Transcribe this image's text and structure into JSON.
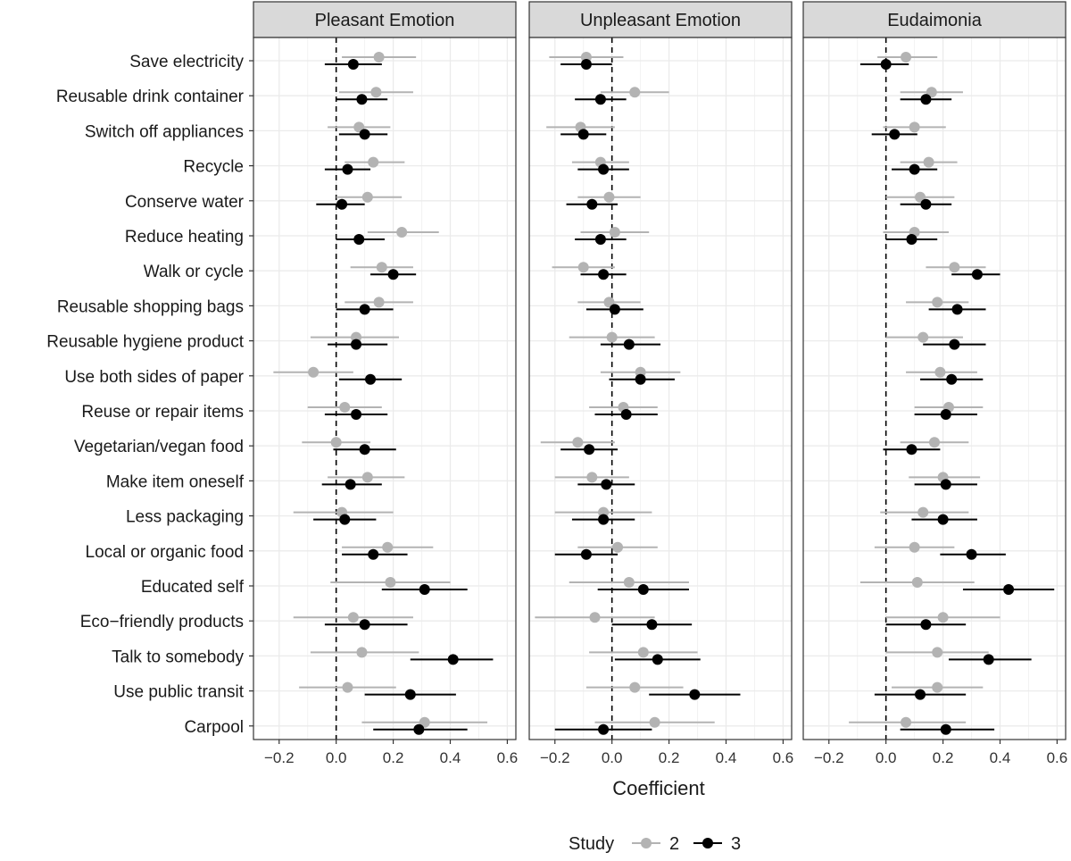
{
  "chart_data": {
    "type": "scatter",
    "subtype": "coefficient-plot",
    "title": "",
    "xlabel": "Coefficient",
    "ylabel": "",
    "xlim": [
      -0.29,
      0.63
    ],
    "x_ticks": [
      -0.2,
      0.0,
      0.2,
      0.4,
      0.6
    ],
    "x_tick_labels": [
      "−0.2",
      "0.0",
      "0.2",
      "0.4",
      "0.6"
    ],
    "reference_line": 0,
    "grid": true,
    "legend": {
      "title": "Study",
      "placement": "bottom",
      "entries": [
        "2",
        "3"
      ]
    },
    "colors": {
      "2": "#b3b3b3",
      "3": "#000000"
    },
    "categories": [
      "Save electricity",
      "Reusable drink container",
      "Switch off appliances",
      "Recycle",
      "Conserve water",
      "Reduce heating",
      "Walk or cycle",
      "Reusable shopping bags",
      "Reusable hygiene product",
      "Use both sides of paper",
      "Reuse or repair items",
      "Vegetarian/vegan food",
      "Make item oneself",
      "Less packaging",
      "Local or organic food",
      "Educated self",
      "Eco−friendly products",
      "Talk to somebody",
      "Use public transit",
      "Carpool"
    ],
    "panels": [
      {
        "name": "Pleasant Emotion",
        "series": [
          {
            "name": "2",
            "estimate": [
              0.15,
              0.14,
              0.08,
              0.13,
              0.11,
              0.23,
              0.16,
              0.15,
              0.07,
              -0.08,
              0.03,
              0.0,
              0.11,
              0.02,
              0.18,
              0.19,
              0.06,
              0.09,
              0.04,
              0.31
            ],
            "lower": [
              0.02,
              0.01,
              -0.03,
              0.03,
              0.0,
              0.11,
              0.05,
              0.03,
              -0.09,
              -0.22,
              -0.1,
              -0.12,
              -0.03,
              -0.15,
              0.02,
              -0.02,
              -0.15,
              -0.09,
              -0.13,
              0.09
            ],
            "upper": [
              0.28,
              0.27,
              0.19,
              0.24,
              0.23,
              0.36,
              0.27,
              0.27,
              0.22,
              0.06,
              0.16,
              0.12,
              0.24,
              0.2,
              0.34,
              0.4,
              0.27,
              0.29,
              0.21,
              0.53
            ]
          },
          {
            "name": "3",
            "estimate": [
              0.06,
              0.09,
              0.1,
              0.04,
              0.02,
              0.08,
              0.2,
              0.1,
              0.07,
              0.12,
              0.07,
              0.1,
              0.05,
              0.03,
              0.13,
              0.31,
              0.1,
              0.41,
              0.26,
              0.29
            ],
            "lower": [
              -0.04,
              0.0,
              0.01,
              -0.04,
              -0.07,
              0.0,
              0.12,
              0.0,
              -0.03,
              0.01,
              -0.04,
              -0.01,
              -0.05,
              -0.08,
              0.02,
              0.16,
              -0.04,
              0.26,
              0.1,
              0.13
            ],
            "upper": [
              0.16,
              0.18,
              0.18,
              0.12,
              0.1,
              0.17,
              0.28,
              0.2,
              0.18,
              0.23,
              0.18,
              0.21,
              0.16,
              0.14,
              0.25,
              0.46,
              0.25,
              0.55,
              0.42,
              0.46
            ]
          }
        ]
      },
      {
        "name": "Unpleasant Emotion",
        "series": [
          {
            "name": "2",
            "estimate": [
              -0.09,
              0.08,
              -0.11,
              -0.04,
              -0.01,
              0.01,
              -0.1,
              -0.01,
              0.0,
              0.1,
              0.04,
              -0.12,
              -0.07,
              -0.03,
              0.02,
              0.06,
              -0.06,
              0.11,
              0.08,
              0.15
            ],
            "lower": [
              -0.22,
              -0.04,
              -0.23,
              -0.14,
              -0.12,
              -0.11,
              -0.21,
              -0.12,
              -0.15,
              -0.04,
              -0.08,
              -0.25,
              -0.2,
              -0.2,
              -0.12,
              -0.15,
              -0.27,
              -0.08,
              -0.09,
              -0.06
            ],
            "upper": [
              0.04,
              0.2,
              0.01,
              0.06,
              0.1,
              0.13,
              0.01,
              0.1,
              0.15,
              0.24,
              0.16,
              0.01,
              0.06,
              0.14,
              0.16,
              0.27,
              0.15,
              0.3,
              0.25,
              0.36
            ]
          },
          {
            "name": "3",
            "estimate": [
              -0.09,
              -0.04,
              -0.1,
              -0.03,
              -0.07,
              -0.04,
              -0.03,
              0.01,
              0.06,
              0.1,
              0.05,
              -0.08,
              -0.02,
              -0.03,
              -0.09,
              0.11,
              0.14,
              0.16,
              0.29,
              -0.03
            ],
            "lower": [
              -0.18,
              -0.13,
              -0.18,
              -0.12,
              -0.16,
              -0.13,
              -0.11,
              -0.09,
              -0.04,
              -0.01,
              -0.06,
              -0.18,
              -0.12,
              -0.14,
              -0.2,
              -0.05,
              0.0,
              0.01,
              0.13,
              -0.2
            ],
            "upper": [
              0.0,
              0.05,
              -0.02,
              0.06,
              0.02,
              0.05,
              0.05,
              0.11,
              0.17,
              0.22,
              0.16,
              0.02,
              0.08,
              0.08,
              0.02,
              0.27,
              0.28,
              0.31,
              0.45,
              0.14
            ]
          }
        ]
      },
      {
        "name": "Eudaimonia",
        "series": [
          {
            "name": "2",
            "estimate": [
              0.07,
              0.16,
              0.1,
              0.15,
              0.12,
              0.1,
              0.24,
              0.18,
              0.13,
              0.19,
              0.22,
              0.17,
              0.2,
              0.13,
              0.1,
              0.11,
              0.2,
              0.18,
              0.18,
              0.07
            ],
            "lower": [
              -0.03,
              0.05,
              -0.01,
              0.05,
              0.0,
              -0.01,
              0.14,
              0.07,
              0.0,
              0.07,
              0.1,
              0.05,
              0.08,
              -0.02,
              -0.04,
              -0.09,
              0.0,
              0.0,
              0.02,
              -0.13
            ],
            "upper": [
              0.18,
              0.27,
              0.21,
              0.25,
              0.24,
              0.22,
              0.35,
              0.29,
              0.27,
              0.32,
              0.34,
              0.29,
              0.33,
              0.29,
              0.24,
              0.31,
              0.4,
              0.36,
              0.34,
              0.28
            ]
          },
          {
            "name": "3",
            "estimate": [
              0.0,
              0.14,
              0.03,
              0.1,
              0.14,
              0.09,
              0.32,
              0.25,
              0.24,
              0.23,
              0.21,
              0.09,
              0.21,
              0.2,
              0.3,
              0.43,
              0.14,
              0.36,
              0.12,
              0.21
            ],
            "lower": [
              -0.09,
              0.05,
              -0.05,
              0.02,
              0.05,
              0.0,
              0.23,
              0.15,
              0.13,
              0.12,
              0.1,
              -0.01,
              0.1,
              0.09,
              0.19,
              0.27,
              0.0,
              0.22,
              -0.04,
              0.05
            ],
            "upper": [
              0.08,
              0.23,
              0.11,
              0.18,
              0.23,
              0.18,
              0.4,
              0.35,
              0.35,
              0.34,
              0.32,
              0.19,
              0.32,
              0.32,
              0.42,
              0.59,
              0.28,
              0.51,
              0.28,
              0.38
            ]
          }
        ]
      }
    ]
  }
}
